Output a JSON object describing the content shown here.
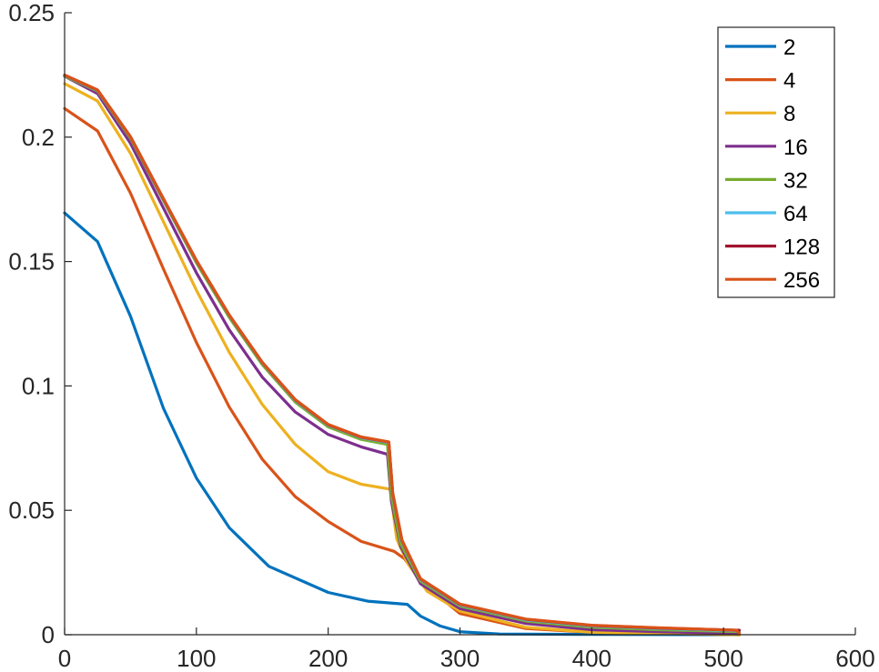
{
  "chart_data": {
    "type": "line",
    "title": "",
    "xlabel": "",
    "ylabel": "",
    "xlim": [
      0,
      600
    ],
    "ylim": [
      0,
      0.25
    ],
    "xticks": [
      0,
      100,
      200,
      300,
      400,
      500,
      600
    ],
    "xtick_labels": [
      "0",
      "100",
      "200",
      "300",
      "400",
      "500",
      "600"
    ],
    "yticks": [
      0,
      0.05,
      0.1,
      0.15,
      0.2,
      0.25
    ],
    "ytick_labels": [
      "0",
      "0.05",
      "0.1",
      "0.15",
      "0.2",
      "0.25"
    ],
    "grid": false,
    "legend": {
      "placement": "top-right",
      "entries": [
        "2",
        "4",
        "8",
        "16",
        "32",
        "64",
        "128",
        "256"
      ]
    },
    "series": [
      {
        "name": "2",
        "color": "#0072BD",
        "x": [
          0,
          25,
          50,
          75,
          100,
          125,
          155,
          200,
          230,
          260,
          270,
          285,
          300,
          330,
          400,
          512
        ],
        "y": [
          0.1695,
          0.158,
          0.128,
          0.091,
          0.063,
          0.043,
          0.0275,
          0.017,
          0.0135,
          0.0122,
          0.0075,
          0.0035,
          0.0012,
          0.0003,
          0.0001,
          0.0
        ]
      },
      {
        "name": "4",
        "color": "#D95319",
        "x": [
          0,
          25,
          50,
          75,
          100,
          125,
          150,
          175,
          200,
          225,
          250,
          258,
          270,
          300,
          350,
          400,
          512
        ],
        "y": [
          0.2115,
          0.2025,
          0.1775,
          0.147,
          0.1175,
          0.0915,
          0.0705,
          0.0555,
          0.0455,
          0.0375,
          0.0335,
          0.0305,
          0.0215,
          0.0085,
          0.0025,
          0.001,
          0.0
        ]
      },
      {
        "name": "8",
        "color": "#EDB120",
        "x": [
          0,
          25,
          50,
          75,
          100,
          125,
          150,
          175,
          200,
          225,
          247,
          252,
          260,
          275,
          300,
          350,
          400,
          512
        ],
        "y": [
          0.2215,
          0.2145,
          0.1935,
          0.166,
          0.1385,
          0.1135,
          0.0925,
          0.0765,
          0.0655,
          0.0605,
          0.0585,
          0.0385,
          0.029,
          0.0175,
          0.0095,
          0.003,
          0.001,
          0.0
        ]
      },
      {
        "name": "16",
        "color": "#7E2F8E",
        "x": [
          0,
          25,
          50,
          75,
          100,
          125,
          150,
          175,
          200,
          225,
          245,
          248,
          255,
          270,
          300,
          350,
          400,
          450,
          512
        ],
        "y": [
          0.2245,
          0.2175,
          0.1975,
          0.1715,
          0.1455,
          0.1225,
          0.1035,
          0.0895,
          0.0805,
          0.0755,
          0.0725,
          0.0535,
          0.0355,
          0.0205,
          0.0105,
          0.0045,
          0.002,
          0.0012,
          0.0005
        ]
      },
      {
        "name": "32",
        "color": "#77AC30",
        "x": [
          0,
          25,
          50,
          75,
          100,
          125,
          150,
          175,
          200,
          225,
          245,
          248,
          255,
          270,
          300,
          350,
          400,
          450,
          512
        ],
        "y": [
          0.2245,
          0.2185,
          0.1995,
          0.1745,
          0.1495,
          0.1275,
          0.1085,
          0.0935,
          0.0835,
          0.0785,
          0.0765,
          0.0555,
          0.0365,
          0.0215,
          0.0115,
          0.0055,
          0.003,
          0.002,
          0.0012
        ]
      },
      {
        "name": "64",
        "color": "#4DBEEE",
        "x": [
          0,
          25,
          50,
          75,
          100,
          125,
          150,
          175,
          200,
          225,
          246,
          249,
          256,
          270,
          300,
          350,
          400,
          450,
          512
        ],
        "y": [
          0.2248,
          0.2188,
          0.2,
          0.175,
          0.1502,
          0.1282,
          0.1092,
          0.0942,
          0.0842,
          0.0792,
          0.0772,
          0.0565,
          0.0375,
          0.0222,
          0.012,
          0.006,
          0.0035,
          0.0025,
          0.0016
        ]
      },
      {
        "name": "128",
        "color": "#A2142F",
        "x": [
          0,
          25,
          50,
          75,
          100,
          125,
          150,
          175,
          200,
          225,
          246,
          249,
          256,
          270,
          300,
          350,
          400,
          450,
          512
        ],
        "y": [
          0.2249,
          0.2189,
          0.2001,
          0.1752,
          0.1504,
          0.1284,
          0.1094,
          0.0944,
          0.0844,
          0.0794,
          0.0774,
          0.0568,
          0.0378,
          0.0224,
          0.0122,
          0.0062,
          0.0037,
          0.0027,
          0.0018
        ]
      },
      {
        "name": "256",
        "color": "#D95319",
        "x": [
          0,
          25,
          50,
          75,
          100,
          125,
          150,
          175,
          200,
          225,
          246,
          249,
          256,
          270,
          300,
          350,
          400,
          450,
          510,
          512
        ],
        "y": [
          0.225,
          0.219,
          0.2002,
          0.1753,
          0.1505,
          0.1285,
          0.1095,
          0.0945,
          0.0845,
          0.0795,
          0.0775,
          0.057,
          0.038,
          0.0225,
          0.0123,
          0.0063,
          0.0038,
          0.0028,
          0.0018,
          0.0004
        ]
      }
    ]
  }
}
